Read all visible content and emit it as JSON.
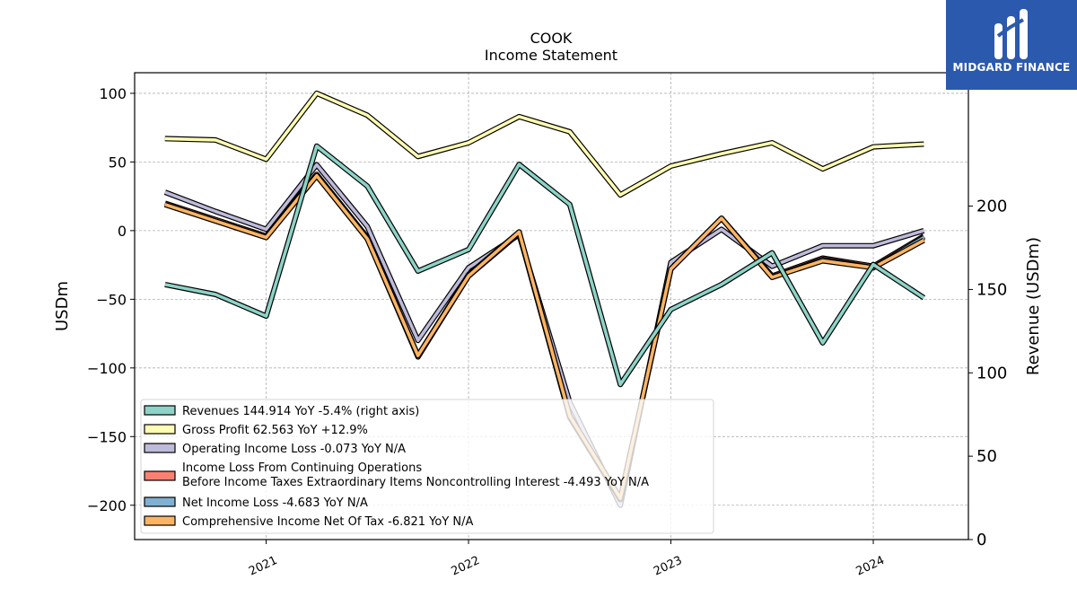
{
  "brand": {
    "name": "MIDGARD FINANCE"
  },
  "chart_data": {
    "type": "line",
    "title": "COOK",
    "subtitle": "Income Statement",
    "ylabel": "USDm",
    "ylabel_right": "Revenue (USDm)",
    "x": [
      "2020-07-01",
      "2020-10-01",
      "2021-01-01",
      "2021-04-01",
      "2021-07-01",
      "2021-10-01",
      "2022-01-01",
      "2022-04-01",
      "2022-07-01",
      "2022-10-01",
      "2023-01-01",
      "2023-04-01",
      "2023-07-01",
      "2023-10-01",
      "2024-01-01",
      "2024-04-01"
    ],
    "xticks": [
      "2021",
      "2022",
      "2023",
      "2024"
    ],
    "ylim": [
      -225,
      115
    ],
    "ylim_right": [
      0,
      280
    ],
    "yticks": [
      "100",
      "50",
      "0",
      "−50",
      "−100",
      "−150",
      "−200"
    ],
    "yticks_right": [
      "200",
      "150",
      "100",
      "50",
      "0"
    ],
    "grid": true,
    "legend_position": "lower-left",
    "series": [
      {
        "name": "Revenues  144.914 YoY -5.4% (right axis)",
        "axis": "right",
        "color": "#8dd3c7",
        "values": [
          153,
          147,
          134,
          236,
          212,
          161,
          174,
          225,
          201,
          93,
          138,
          153,
          172,
          118,
          165,
          145
        ]
      },
      {
        "name": "Gross Profit  62.563 YoY +12.9%",
        "axis": "left",
        "color": "#ffffb3",
        "values": [
          67,
          66,
          52,
          100,
          84,
          54,
          64,
          83,
          72,
          26,
          47,
          56,
          64,
          45,
          61,
          63
        ]
      },
      {
        "name": "Operating Income Loss  -0.073 YoY N/A",
        "axis": "left",
        "color": "#bebada",
        "values": [
          28,
          14,
          1,
          48,
          3,
          -80,
          -27,
          -3,
          -125,
          -200,
          -23,
          1,
          -26,
          -11,
          -11,
          0
        ]
      },
      {
        "name": "Income Loss From Continuing Operations\nBefore Income Taxes Extraordinary Items Noncontrolling Interest  -4.493 YoY N/A",
        "axis": "left",
        "color": "#fb8072",
        "values": [
          20,
          8,
          -4,
          41,
          -5,
          -91,
          -32,
          -1,
          -135,
          -195,
          -28,
          9,
          -33,
          -20,
          -26,
          -4
        ]
      },
      {
        "name": "Net Income Loss  -4.683 YoY N/A",
        "axis": "left",
        "color": "#80b1d3",
        "values": [
          19,
          7,
          -5,
          40,
          -6,
          -92,
          -33,
          -2,
          -136,
          -196,
          -28,
          9,
          -34,
          -21,
          -27,
          -5
        ]
      },
      {
        "name": "Comprehensive Income Net Of Tax  -6.821 YoY N/A",
        "axis": "left",
        "color": "#fdb462",
        "values": [
          19,
          7,
          -5,
          40,
          -6,
          -91,
          -33,
          -1,
          -135,
          -195,
          -28,
          9,
          -34,
          -22,
          -27,
          -7
        ]
      }
    ]
  }
}
